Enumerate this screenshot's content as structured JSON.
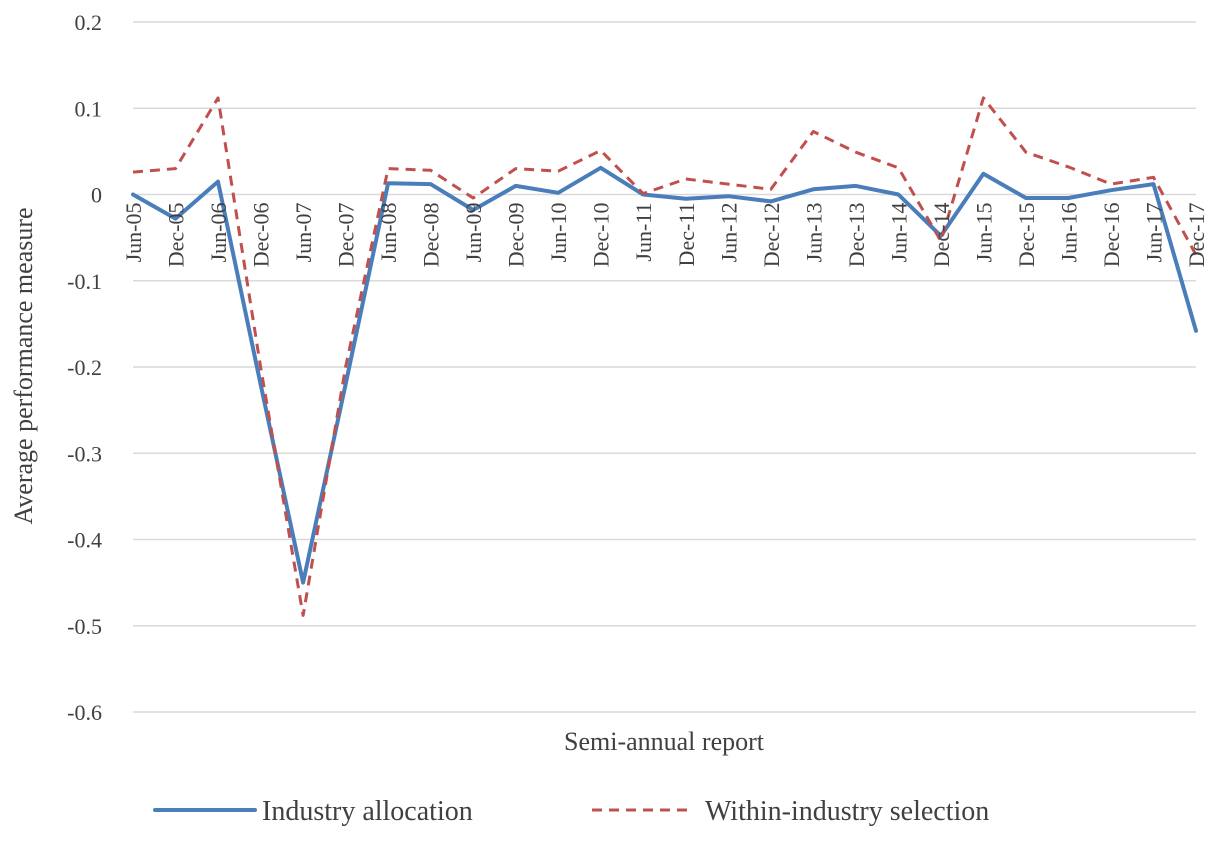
{
  "chart_data": {
    "type": "line",
    "title": "",
    "xlabel": "Semi-annual report",
    "ylabel": "Average performance measure",
    "ylim": [
      -0.6,
      0.2
    ],
    "yticks": [
      "0.2",
      "0.1",
      "0",
      "-0.1",
      "-0.2",
      "-0.3",
      "-0.4",
      "-0.5",
      "-0.6"
    ],
    "ytick_values": [
      0.2,
      0.1,
      0,
      -0.1,
      -0.2,
      -0.3,
      -0.4,
      -0.5,
      -0.6
    ],
    "grid": true,
    "legend_position": "bottom",
    "categories": [
      "Jun-05",
      "Dec-05",
      "Jun-06",
      "Dec-06",
      "Jun-07",
      "Dec-07",
      "Jun-08",
      "Dec-08",
      "Jun-09",
      "Dec-09",
      "Jun-10",
      "Dec-10",
      "Jun-11",
      "Dec-11",
      "Jun-12",
      "Dec-12",
      "Jun-13",
      "Dec-13",
      "Jun-14",
      "Dec-14",
      "Jun-15",
      "Dec-15",
      "Jun-16",
      "Dec-16",
      "Jun-17",
      "Dec-17"
    ],
    "series": [
      {
        "name": "Industry allocation",
        "color": "#4a7ebb",
        "style": "solid",
        "values": [
          0.0,
          -0.028,
          0.015,
          -0.22,
          -0.45,
          -0.22,
          0.013,
          0.012,
          -0.018,
          0.01,
          0.002,
          0.031,
          0.0,
          -0.005,
          -0.002,
          -0.008,
          0.006,
          0.01,
          0.0,
          -0.048,
          0.024,
          -0.004,
          -0.004,
          0.005,
          0.012,
          -0.158
        ]
      },
      {
        "name": "Within-industry selection",
        "color": "#c0504d",
        "style": "dashed",
        "values": [
          0.026,
          0.03,
          0.112,
          -0.2,
          -0.488,
          -0.2,
          0.03,
          0.028,
          -0.004,
          0.03,
          0.027,
          0.051,
          0.001,
          0.018,
          0.012,
          0.006,
          0.073,
          0.049,
          0.031,
          -0.054,
          0.112,
          0.049,
          0.032,
          0.012,
          0.02,
          -0.07
        ]
      }
    ]
  }
}
